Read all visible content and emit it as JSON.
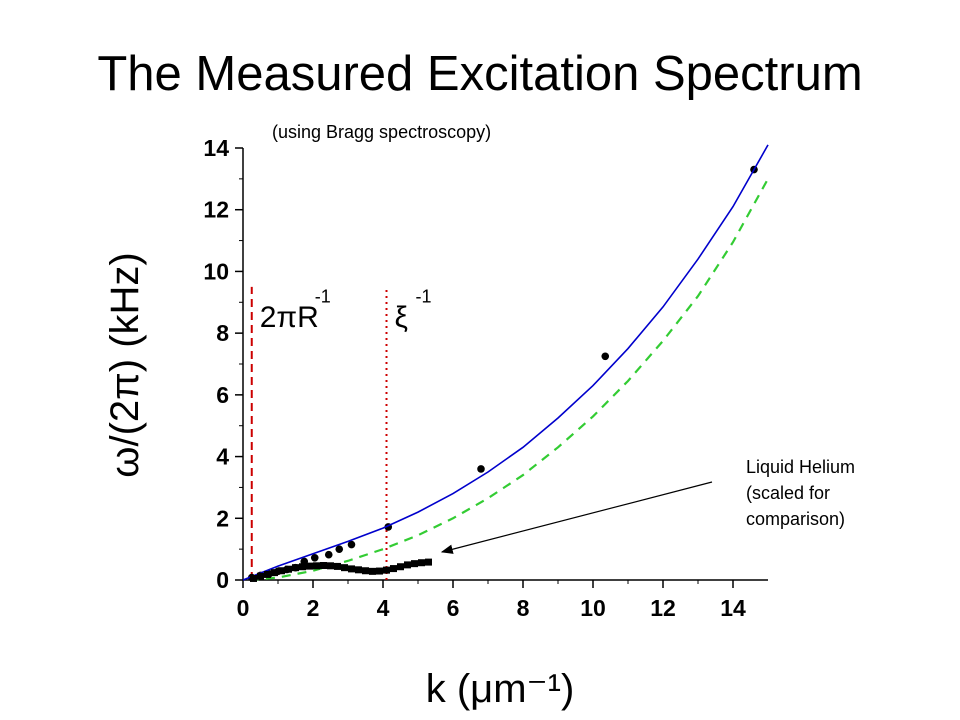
{
  "slide": {
    "title": "The Measured Excitation Spectrum",
    "subtitle": "(using Bragg spectroscopy)",
    "annotation_lines": [
      "Liquid Helium",
      "(scaled for",
      "comparison)"
    ]
  },
  "chart_data": {
    "type": "scatter",
    "xlabel": "k (μm⁻¹)",
    "ylabel": "ω/(2π) (kHz)",
    "xlim": [
      0,
      15
    ],
    "ylim": [
      0,
      14
    ],
    "x_ticks": [
      0,
      2,
      4,
      6,
      8,
      10,
      12,
      14
    ],
    "y_ticks": [
      0,
      2,
      4,
      6,
      8,
      10,
      12,
      14
    ],
    "grid": false,
    "series": [
      {
        "name": "",
        "kind": "points",
        "color": "#000000",
        "x": [
          0.25,
          0.5,
          0.75,
          1.0,
          1.25,
          1.5,
          1.75,
          2.05,
          2.45,
          2.75,
          3.1,
          4.15,
          6.8,
          10.35,
          14.6
        ],
        "y": [
          0.08,
          0.15,
          0.2,
          0.28,
          0.34,
          0.4,
          0.6,
          0.72,
          0.82,
          1.0,
          1.15,
          1.72,
          3.6,
          7.25,
          13.3
        ]
      },
      {
        "name": "",
        "kind": "line",
        "color": "#0000cc",
        "x": [
          0,
          1,
          2,
          3,
          4,
          5,
          6,
          7,
          8,
          9,
          10,
          11,
          12,
          13,
          14,
          15
        ],
        "y": [
          0,
          0.45,
          0.85,
          1.25,
          1.68,
          2.2,
          2.8,
          3.5,
          4.3,
          5.25,
          6.3,
          7.5,
          8.85,
          10.4,
          12.1,
          14.1
        ]
      },
      {
        "name": "",
        "kind": "dashed-line",
        "color": "#33cc33",
        "x": [
          0.2,
          1,
          2,
          3,
          4,
          5,
          6,
          7,
          8,
          9,
          10,
          11,
          12,
          13,
          14,
          15
        ],
        "y": [
          0,
          0.08,
          0.3,
          0.62,
          1.0,
          1.45,
          2.0,
          2.65,
          3.4,
          4.3,
          5.3,
          6.45,
          7.75,
          9.2,
          10.95,
          13.0
        ]
      },
      {
        "name": "",
        "kind": "squares",
        "color": "#000000",
        "x": [
          0.3,
          0.5,
          0.7,
          0.9,
          1.1,
          1.3,
          1.5,
          1.7,
          1.9,
          2.1,
          2.3,
          2.5,
          2.7,
          2.9,
          3.1,
          3.3,
          3.5,
          3.7,
          3.9,
          4.1,
          4.3,
          4.5,
          4.7,
          4.9,
          5.1,
          5.3
        ],
        "y": [
          0.05,
          0.12,
          0.18,
          0.24,
          0.3,
          0.35,
          0.4,
          0.43,
          0.45,
          0.46,
          0.47,
          0.46,
          0.44,
          0.4,
          0.36,
          0.33,
          0.3,
          0.28,
          0.29,
          0.32,
          0.37,
          0.43,
          0.49,
          0.53,
          0.56,
          0.58
        ]
      }
    ],
    "vlines": [
      {
        "x": 0.25,
        "label": "2πR",
        "superscript": "-1",
        "style": "dashed",
        "color": "#cc0000"
      },
      {
        "x": 4.1,
        "label": "ξ",
        "superscript": "-1",
        "style": "dotted",
        "color": "#cc0000"
      }
    ]
  }
}
